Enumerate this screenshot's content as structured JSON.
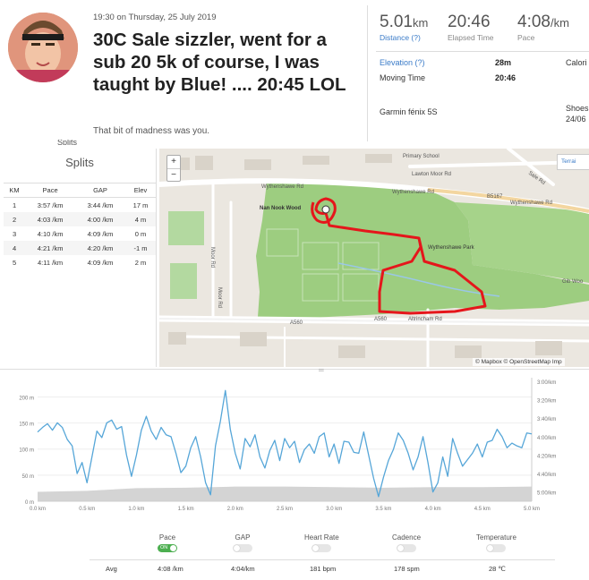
{
  "activity": {
    "datetime": "19:30 on Thursday, 25 July 2019",
    "title": "30C Sale sizzler, went for a sub 20 5k of course, I was taught by Blue! .... 20:45 LOL",
    "subtitle": "That bit of madness was you."
  },
  "stats": {
    "distance": {
      "value": "5.01",
      "unit": "km",
      "label": "Distance (?)"
    },
    "elapsed": {
      "value": "20:46",
      "label": "Elapsed Time"
    },
    "pace": {
      "value": "4:08",
      "unit": "/km",
      "label": "Pace"
    },
    "elevation": {
      "label": "Elevation (?)",
      "value": "28m"
    },
    "moving": {
      "label": "Moving Time",
      "value": "20:46"
    },
    "calories_label": "Calori",
    "device": "Garmin fénix 5S",
    "shoes_label": "Shoes",
    "shoes_date": "24/06"
  },
  "splits": {
    "title": "Splits",
    "partial_label": "Splits",
    "headers": [
      "KM",
      "Pace",
      "GAP",
      "Elev"
    ],
    "rows": [
      [
        "1",
        "3:57 /km",
        "3:44 /km",
        "17 m"
      ],
      [
        "2",
        "4:03 /km",
        "4:00 /km",
        "4 m"
      ],
      [
        "3",
        "4:10 /km",
        "4:09 /km",
        "0 m"
      ],
      [
        "4",
        "4:21 /km",
        "4:20 /km",
        "-1 m"
      ],
      [
        "5",
        "4:11 /km",
        "4:09 /km",
        "2 m"
      ]
    ]
  },
  "map": {
    "zoom_in": "+",
    "zoom_out": "−",
    "terrain": "Terrai",
    "attribution": "© Mapbox © OpenStreetMap Imp",
    "labels": [
      "Primary School",
      "Lawton Moor Rd",
      "Wythenshawe Rd",
      "Wythenshawe Rd",
      "Wythenshawe Rd",
      "B5167",
      "Sale Rd",
      "Nan Nook Wood",
      "Wythenshawe Park",
      "Moor Rd",
      "Moor Rd",
      "Gib Woo",
      "Altrincham Rd",
      "A560",
      "A560"
    ],
    "route_color": "#e5161b",
    "park_color": "#9dcd80"
  },
  "chart_data": {
    "type": "area",
    "x_ticks": [
      "0.0 km",
      "0.5 km",
      "1.0 km",
      "1.5 km",
      "2.0 km",
      "2.5 km",
      "3.0 km",
      "3.5 km",
      "4.0 km",
      "4.5 km",
      "5.0 km"
    ],
    "y_left_ticks": [
      "0 m",
      "50 m",
      "100 m",
      "150 m",
      "200 m"
    ],
    "y_right_ticks": [
      "3:00/km",
      "3:20/km",
      "3:40/km",
      "4:00/km",
      "4:20/km",
      "4:40/km",
      "5:00/km"
    ],
    "xlim": [
      0,
      5.0
    ],
    "elevation_ylim": [
      0,
      230
    ],
    "pace_ylim_sec_per_km": [
      180,
      310
    ],
    "pace_color": "#56a6d8",
    "elevation_color": "#cccccc",
    "series": [
      {
        "x": [
          0.0,
          0.5,
          1.0,
          1.5,
          2.0,
          2.5,
          3.0,
          3.5,
          4.0,
          4.5,
          5.0
        ],
        "values": [
          18,
          20,
          25,
          26,
          28,
          28,
          27,
          26,
          27,
          27,
          28
        ]
      },
      {
        "x": [
          0.0,
          0.05,
          0.1,
          0.15,
          0.2,
          0.25,
          0.3,
          0.35,
          0.4,
          0.45,
          0.5,
          0.55,
          0.6,
          0.65,
          0.7,
          0.75,
          0.8,
          0.85,
          0.9,
          0.95,
          1.0,
          1.05,
          1.1,
          1.15,
          1.2,
          1.25,
          1.3,
          1.35,
          1.4,
          1.45,
          1.5,
          1.55,
          1.6,
          1.65,
          1.7,
          1.75,
          1.8,
          1.85,
          1.9,
          1.95,
          2.0,
          2.05,
          2.1,
          2.15,
          2.2,
          2.25,
          2.3,
          2.35,
          2.4,
          2.45,
          2.5,
          2.55,
          2.6,
          2.65,
          2.7,
          2.75,
          2.8,
          2.85,
          2.9,
          2.95,
          3.0,
          3.05,
          3.1,
          3.15,
          3.2,
          3.25,
          3.3,
          3.35,
          3.4,
          3.45,
          3.5,
          3.55,
          3.6,
          3.65,
          3.7,
          3.75,
          3.8,
          3.85,
          3.9,
          3.95,
          4.0,
          4.05,
          4.1,
          4.15,
          4.2,
          4.25,
          4.3,
          4.35,
          4.4,
          4.45,
          4.5,
          4.55,
          4.6,
          4.65,
          4.7,
          4.75,
          4.8,
          4.85,
          4.9,
          4.95,
          5.0
        ],
        "values": [
          235,
          230,
          226,
          233,
          225,
          230,
          243,
          250,
          280,
          268,
          290,
          262,
          234,
          241,
          225,
          222,
          232,
          229,
          260,
          283,
          260,
          233,
          218,
          234,
          243,
          230,
          238,
          240,
          258,
          279,
          272,
          252,
          240,
          262,
          290,
          303,
          250,
          223,
          190,
          232,
          258,
          275,
          242,
          251,
          238,
          262,
          274,
          255,
          244,
          266,
          242,
          252,
          245,
          268,
          254,
          248,
          258,
          240,
          236,
          262,
          248,
          269,
          245,
          246,
          257,
          258,
          235,
          260,
          285,
          305,
          284,
          266,
          254,
          236,
          244,
          258,
          276,
          262,
          240,
          268,
          300,
          290,
          262,
          283,
          242,
          258,
          272,
          265,
          258,
          248,
          262,
          246,
          244,
          232,
          240,
          252,
          247,
          250,
          252,
          236,
          237
        ]
      }
    ]
  },
  "controls": [
    {
      "label": "Pace",
      "state": "on",
      "on_text": "ON"
    },
    {
      "label": "GAP",
      "state": "off"
    },
    {
      "label": "Heart Rate",
      "state": "off"
    },
    {
      "label": "Cadence",
      "state": "off"
    },
    {
      "label": "Temperature",
      "state": "off"
    }
  ],
  "averages": {
    "label": "Avg",
    "pace": "4:08 /km",
    "gap": "4:04/km",
    "heart_rate": "181 bpm",
    "cadence": "178 spm",
    "temperature": "28 ℃"
  }
}
